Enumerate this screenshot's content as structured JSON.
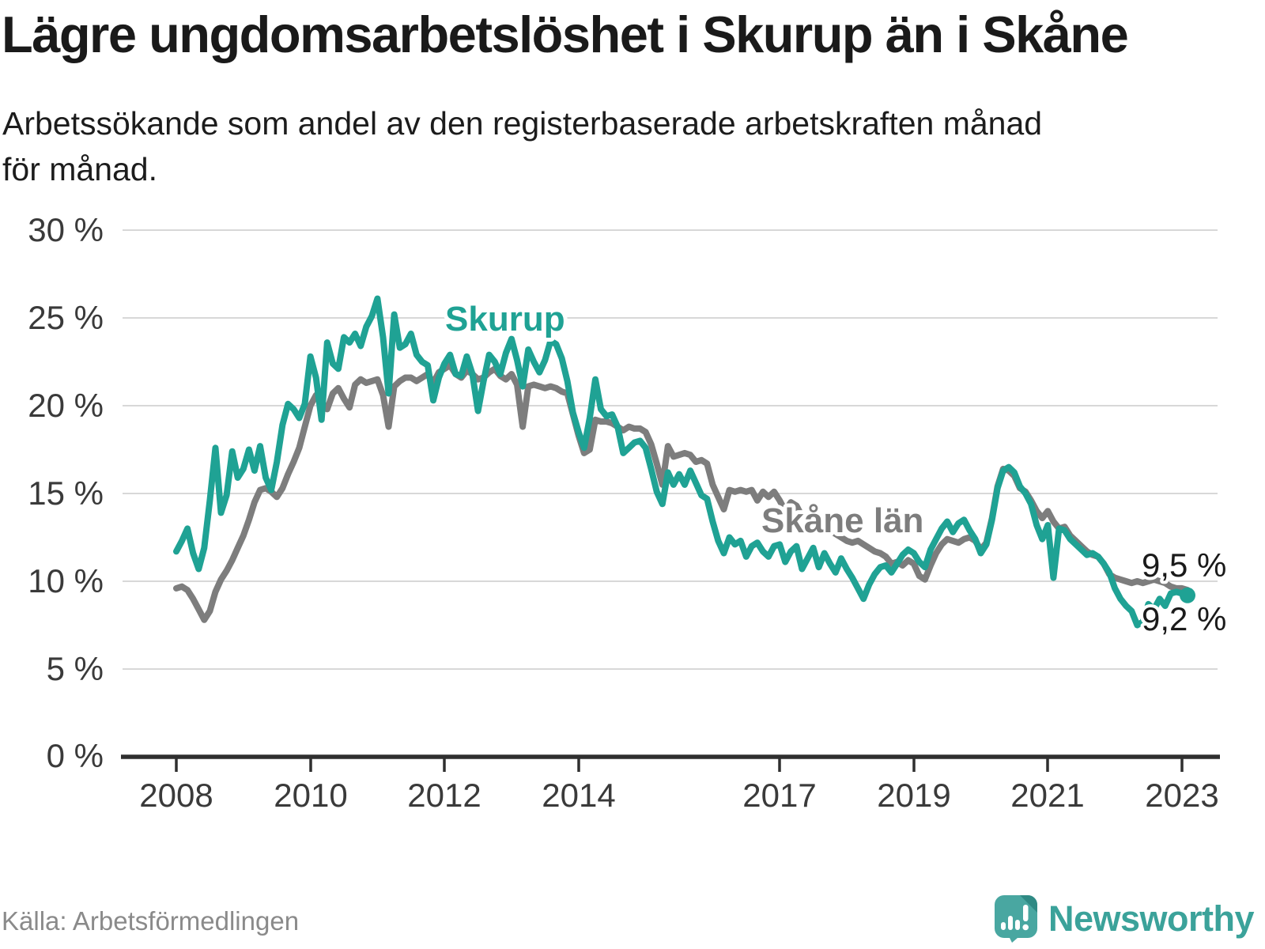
{
  "header": {
    "title": "Lägre ungdomsarbetslöshet i Skurup än i Skåne",
    "subtitle_line1": "Arbetssökande som andel av den registerbaserade arbetskraften månad",
    "subtitle_line2": "för månad."
  },
  "footer": {
    "source": "Källa: Arbetsförmedlingen",
    "brand": "Newsworthy",
    "logo_icon": "bar-chart-speech-bubble-icon"
  },
  "colors": {
    "skurup_line": "#1FA294",
    "skane_line": "#7D7D7D",
    "gridline": "#D8D8D8",
    "axis": "#2F2F2F",
    "title_text": "#1A1A1A",
    "tick_text": "#3A3A3A",
    "source_text": "#8A8A8A",
    "logo_teal": "#49A7A1",
    "logo_fold": "#2F8A84",
    "brand_text": "#3BA29A"
  },
  "chart_data": {
    "type": "line",
    "title": "Lägre ungdomsarbetslöshet i Skurup än i Skåne",
    "xlabel": "",
    "ylabel": "",
    "unit": "%",
    "ylim": [
      0,
      30
    ],
    "grid": "horizontal",
    "legend_position": "inline-labels",
    "frequency": "monthly",
    "x_start": "2008-01",
    "x_end": "2023-02",
    "yticks": [
      "30 %",
      "25 %",
      "20 %",
      "15 %",
      "10 %",
      "5 %",
      "0 %"
    ],
    "xticks": [
      "2008",
      "2010",
      "2012",
      "2014",
      "2017",
      "2019",
      "2021",
      "2023"
    ],
    "annotations": {
      "skurup_label": "Skurup",
      "skane_label": "Skåne län",
      "skurup_end_value": "9,2 %",
      "skane_end_value": "9,5 %"
    },
    "series": [
      {
        "id": "skurup",
        "name": "Skurup",
        "color": "#1FA294",
        "last_value_label": "9,2 %",
        "values": [
          11.7,
          12.3,
          13.0,
          11.6,
          10.7,
          11.9,
          14.6,
          17.6,
          13.9,
          14.9,
          17.4,
          15.9,
          16.4,
          17.5,
          16.3,
          17.7,
          15.9,
          15.2,
          16.8,
          18.9,
          20.1,
          19.8,
          19.3,
          20.1,
          22.8,
          21.6,
          19.2,
          23.6,
          22.4,
          22.1,
          23.9,
          23.6,
          24.1,
          23.4,
          24.5,
          25.1,
          26.1,
          23.9,
          20.7,
          25.2,
          23.3,
          23.5,
          24.1,
          22.9,
          22.5,
          22.3,
          20.3,
          21.6,
          22.4,
          22.9,
          21.8,
          21.7,
          22.8,
          21.8,
          19.7,
          21.4,
          22.9,
          22.5,
          21.8,
          23.0,
          23.8,
          22.6,
          21.1,
          23.2,
          22.5,
          21.9,
          22.6,
          23.7,
          23.5,
          22.7,
          21.4,
          19.6,
          18.5,
          17.6,
          19.3,
          21.5,
          19.8,
          19.4,
          19.5,
          18.8,
          17.3,
          17.6,
          17.9,
          18.0,
          17.6,
          16.4,
          15.1,
          14.4,
          16.2,
          15.5,
          16.1,
          15.5,
          16.3,
          15.6,
          14.9,
          14.7,
          13.4,
          12.3,
          11.6,
          12.5,
          12.1,
          12.3,
          11.4,
          12.0,
          12.2,
          11.7,
          11.4,
          12.0,
          12.1,
          11.1,
          11.7,
          12.0,
          10.7,
          11.3,
          11.9,
          10.8,
          11.6,
          11.0,
          10.5,
          11.3,
          10.7,
          10.2,
          9.6,
          9.0,
          9.8,
          10.4,
          10.8,
          10.9,
          10.5,
          11.0,
          11.5,
          11.8,
          11.6,
          11.1,
          10.8,
          11.8,
          12.4,
          13.0,
          13.4,
          12.8,
          13.3,
          13.5,
          12.9,
          12.4,
          11.6,
          12.1,
          13.5,
          15.3,
          16.3,
          16.5,
          16.2,
          15.4,
          15.0,
          14.4,
          13.2,
          12.4,
          13.2,
          10.2,
          13.0,
          12.9,
          12.4,
          12.1,
          11.8,
          11.5,
          11.6,
          11.4,
          11.0,
          10.5,
          9.6,
          9.0,
          8.6,
          8.3,
          7.5,
          7.7,
          8.7,
          8.4,
          9.0,
          8.6,
          9.3,
          9.4,
          9.3,
          9.2
        ]
      },
      {
        "id": "skane",
        "name": "Skåne län",
        "color": "#7D7D7D",
        "last_value_label": "9,5 %",
        "values": [
          9.6,
          9.7,
          9.5,
          9.0,
          8.4,
          7.8,
          8.3,
          9.4,
          10.1,
          10.6,
          11.2,
          11.9,
          12.6,
          13.5,
          14.5,
          15.2,
          15.3,
          15.1,
          14.8,
          15.3,
          16.1,
          16.8,
          17.6,
          18.8,
          20.0,
          20.6,
          20.2,
          19.8,
          20.7,
          21.0,
          20.4,
          19.9,
          21.2,
          21.5,
          21.3,
          21.4,
          21.5,
          20.6,
          18.8,
          21.1,
          21.4,
          21.6,
          21.6,
          21.4,
          21.6,
          21.8,
          21.3,
          21.9,
          22.1,
          22.3,
          21.8,
          21.6,
          22.0,
          21.8,
          21.5,
          21.6,
          21.9,
          22.1,
          21.7,
          21.5,
          21.8,
          21.2,
          18.8,
          21.1,
          21.2,
          21.1,
          21.0,
          21.1,
          21.0,
          20.8,
          20.7,
          19.5,
          18.3,
          17.3,
          17.5,
          19.2,
          19.1,
          19.1,
          19.0,
          18.8,
          18.6,
          18.8,
          18.7,
          18.7,
          18.5,
          17.8,
          16.7,
          15.5,
          17.7,
          17.1,
          17.2,
          17.3,
          17.2,
          16.8,
          16.9,
          16.7,
          15.5,
          14.8,
          14.1,
          15.2,
          15.1,
          15.2,
          15.1,
          15.2,
          14.6,
          15.1,
          14.8,
          15.1,
          14.6,
          14.0,
          14.5,
          14.3,
          13.7,
          13.4,
          13.2,
          13.3,
          13.1,
          12.9,
          12.7,
          12.5,
          12.3,
          12.2,
          12.3,
          12.1,
          11.9,
          11.7,
          11.6,
          11.4,
          11.0,
          11.1,
          10.9,
          11.2,
          11.0,
          10.3,
          10.1,
          10.9,
          11.6,
          12.1,
          12.4,
          12.3,
          12.2,
          12.4,
          12.5,
          12.3,
          11.8,
          12.2,
          13.6,
          15.4,
          16.4,
          16.3,
          16.0,
          15.3,
          15.1,
          14.6,
          14.0,
          13.6,
          14.0,
          13.4,
          13.0,
          13.1,
          12.6,
          12.3,
          12.0,
          11.7,
          11.5,
          11.4,
          11.0,
          10.4,
          10.2,
          10.1,
          10.0,
          9.9,
          10.0,
          9.9,
          10.0,
          10.1,
          10.0,
          9.9,
          9.7,
          9.6,
          9.6,
          9.5
        ]
      }
    ]
  }
}
